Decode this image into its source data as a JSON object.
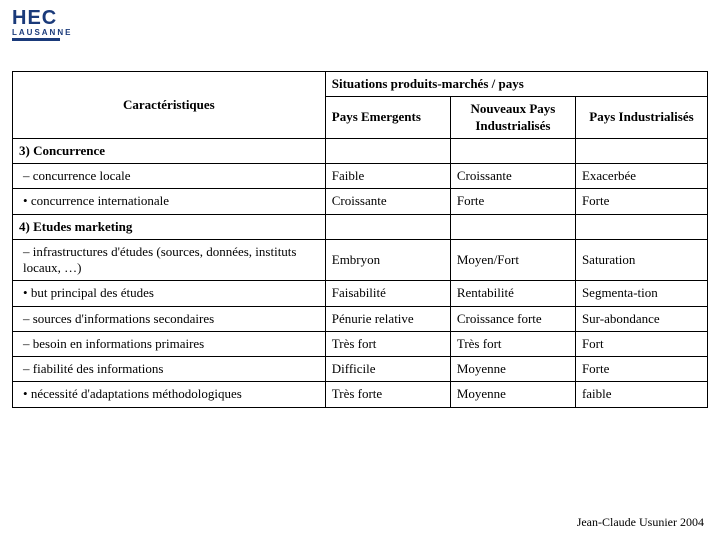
{
  "logo": {
    "top": "HEC",
    "bottom": "LAUSANNE"
  },
  "headers": {
    "char": "Caractéristiques",
    "group": "Situations produits-marchés / pays",
    "c1": "Pays Emergents",
    "c2": "Nouveaux Pays Industrialisés",
    "c3": "Pays Industrialisés"
  },
  "sections": {
    "s3": "3) Concurrence",
    "s4": "4) Etudes marketing"
  },
  "rows": [
    {
      "label": "concurrence locale",
      "marker": "dash",
      "v1": "Faible",
      "v2": "Croissante",
      "v3": "Exacerbée"
    },
    {
      "label": "concurrence internationale",
      "marker": "dot",
      "v1": "Croissante",
      "v2": "Forte",
      "v3": "Forte"
    },
    {
      "label": "infrastructures d'études (sources, données, instituts locaux, …)",
      "marker": "dash",
      "v1": "Embryon",
      "v2": "Moyen/Fort",
      "v3": "Saturation"
    },
    {
      "label": "but principal des études",
      "marker": "dot",
      "v1": "Faisabilité",
      "v2": "Rentabilité",
      "v3": "Segmenta-tion"
    },
    {
      "label": "sources d'informations secondaires",
      "marker": "dash",
      "v1": "Pénurie relative",
      "v2": "Croissance forte",
      "v3": "Sur-abondance"
    },
    {
      "label": "besoin en informations primaires",
      "marker": "dash",
      "v1": "Très fort",
      "v2": "Très fort",
      "v3": "Fort"
    },
    {
      "label": "fiabilité des informations",
      "marker": "dash",
      "v1": "Difficile",
      "v2": "Moyenne",
      "v3": "Forte"
    },
    {
      "label": "nécessité d'adaptations méthodologiques",
      "marker": "dot",
      "v1": "Très forte",
      "v2": "Moyenne",
      "v3": "faible"
    }
  ],
  "footer": "Jean-Claude Usunier 2004",
  "styling": {
    "border_color": "#000000",
    "font_family": "Times New Roman",
    "base_font_size_pt": 10,
    "logo_color": "#1a3a7a",
    "background": "#ffffff",
    "col_widths_pct": [
      45,
      18,
      18,
      19
    ]
  }
}
